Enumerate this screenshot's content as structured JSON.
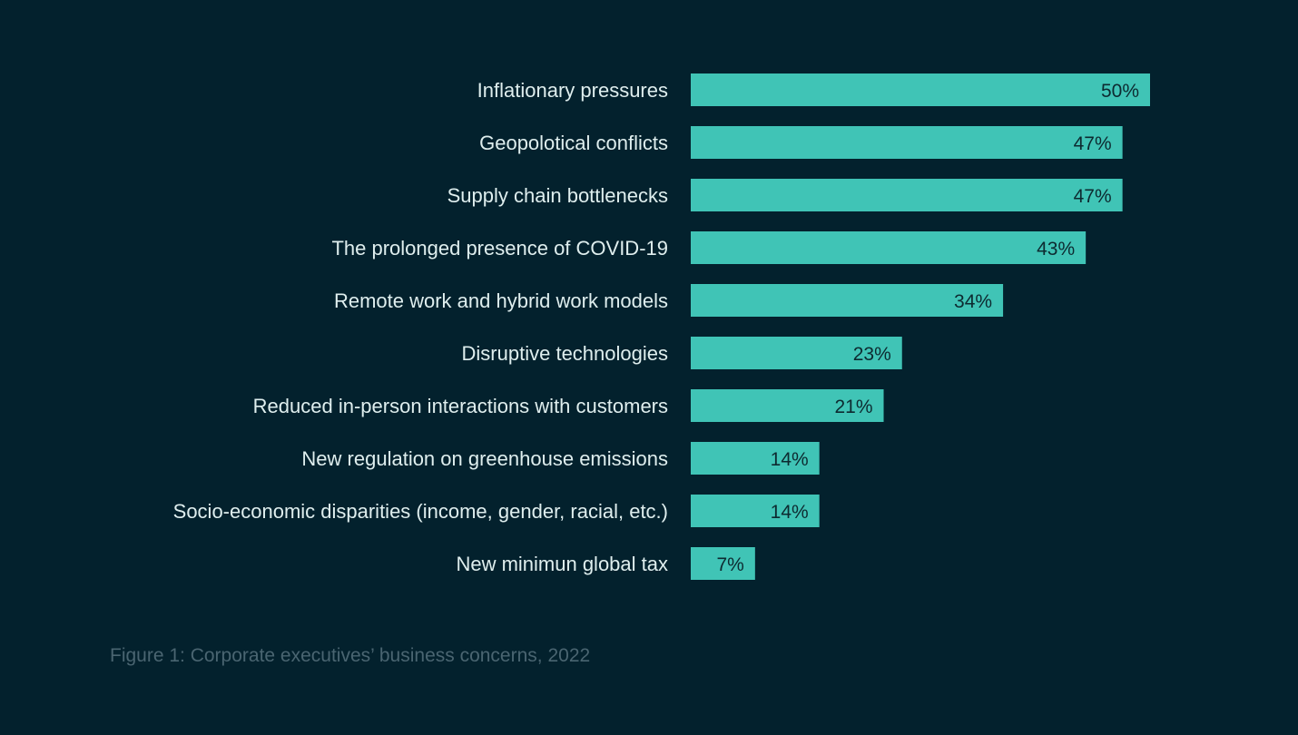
{
  "chart_data": {
    "type": "bar",
    "orientation": "horizontal",
    "categories": [
      "Inflationary pressures",
      "Geopolotical conflicts",
      "Supply chain bottlenecks",
      "The prolonged presence of COVID-19",
      "Remote work and hybrid work models",
      "Disruptive technologies",
      "Reduced in-person interactions with customers",
      "New regulation on greenhouse emissions",
      "Socio-economic disparities (income, gender, racial, etc.)",
      "New minimun global tax"
    ],
    "values": [
      50,
      47,
      47,
      43,
      34,
      23,
      21,
      14,
      14,
      7
    ],
    "data_labels": [
      "50%",
      "47%",
      "47%",
      "43%",
      "34%",
      "23%",
      "21%",
      "14%",
      "14%",
      "7%"
    ],
    "xlim": [
      0,
      50
    ],
    "grid": false,
    "colors": {
      "bar": "#40c4b6",
      "background": "#03212d",
      "label": "#dfeeee",
      "value_label": "#0d2a30",
      "caption": "#4a6571"
    }
  },
  "caption": "Figure 1: Corporate executives’ business concerns, 2022"
}
